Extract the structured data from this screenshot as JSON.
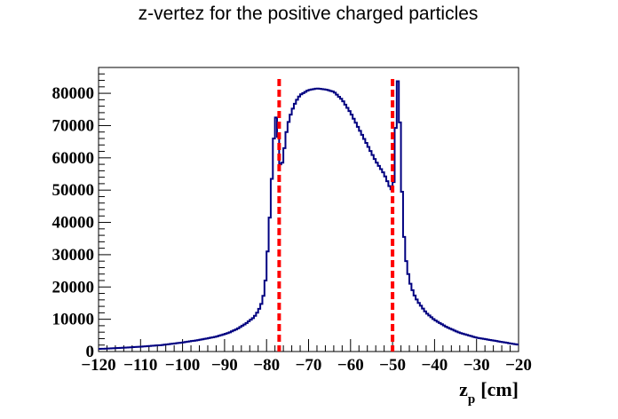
{
  "chart_data": {
    "type": "histogram",
    "title": "z-vertez for the positive charged particles",
    "xlabel": {
      "main": "z",
      "sub": "p",
      "unit": "[cm]"
    },
    "ylabel": "",
    "xlim": [
      -120,
      -20
    ],
    "ylim": [
      0,
      88000
    ],
    "x_ticks": [
      -120,
      -110,
      -100,
      -90,
      -80,
      -70,
      -60,
      -50,
      -40,
      -30,
      -20
    ],
    "x_tick_labels": [
      "−120",
      "−110",
      "−100",
      "−90",
      "−80",
      "−70",
      "−60",
      "−50",
      "−40",
      "−30",
      "−20"
    ],
    "y_ticks": [
      0,
      10000,
      20000,
      30000,
      40000,
      50000,
      60000,
      70000,
      80000
    ],
    "y_tick_labels": [
      "0",
      "10000",
      "20000",
      "30000",
      "40000",
      "50000",
      "60000",
      "70000",
      "80000"
    ],
    "grid": false,
    "legend": "none",
    "series": [
      {
        "color": "#000080",
        "points": [
          [
            -120,
            800
          ],
          [
            -115,
            1100
          ],
          [
            -110,
            1500
          ],
          [
            -105,
            2000
          ],
          [
            -100,
            2800
          ],
          [
            -96,
            3600
          ],
          [
            -92,
            4600
          ],
          [
            -89,
            5800
          ],
          [
            -87,
            7000
          ],
          [
            -85,
            8600
          ],
          [
            -83,
            10600
          ],
          [
            -82,
            12500
          ],
          [
            -81,
            15500
          ],
          [
            -80.5,
            19000
          ],
          [
            -80,
            25000
          ],
          [
            -79.5,
            37000
          ],
          [
            -79,
            46000
          ],
          [
            -78.5,
            61000
          ],
          [
            -78,
            71000
          ],
          [
            -77.5,
            74000
          ],
          [
            -77,
            59000
          ],
          [
            -76.5,
            57000
          ],
          [
            -76,
            60000
          ],
          [
            -75.5,
            66000
          ],
          [
            -75,
            70000
          ],
          [
            -74,
            74500
          ],
          [
            -73,
            77500
          ],
          [
            -72,
            79500
          ],
          [
            -70,
            81000
          ],
          [
            -68,
            81500
          ],
          [
            -66,
            81200
          ],
          [
            -64,
            80500
          ],
          [
            -62,
            78000
          ],
          [
            -60,
            74000
          ],
          [
            -58,
            69000
          ],
          [
            -56,
            64000
          ],
          [
            -54,
            59000
          ],
          [
            -52,
            55000
          ],
          [
            -51,
            52000
          ],
          [
            -50.5,
            50500
          ],
          [
            -50,
            50000
          ],
          [
            -49.5,
            55000
          ],
          [
            -49,
            83500
          ],
          [
            -48.5,
            84000
          ],
          [
            -48,
            58000
          ],
          [
            -47.5,
            41000
          ],
          [
            -47,
            30000
          ],
          [
            -46,
            22000
          ],
          [
            -45,
            18000
          ],
          [
            -44,
            15500
          ],
          [
            -42,
            12000
          ],
          [
            -40,
            9800
          ],
          [
            -37,
            7500
          ],
          [
            -34,
            5800
          ],
          [
            -30,
            4300
          ],
          [
            -25,
            3200
          ],
          [
            -20,
            2100
          ]
        ]
      }
    ],
    "annotations": [
      {
        "type": "vertical-dashed-line",
        "x": -77,
        "color": "#ff0000"
      },
      {
        "type": "vertical-dashed-line",
        "x": -50,
        "color": "#ff0000"
      }
    ]
  }
}
